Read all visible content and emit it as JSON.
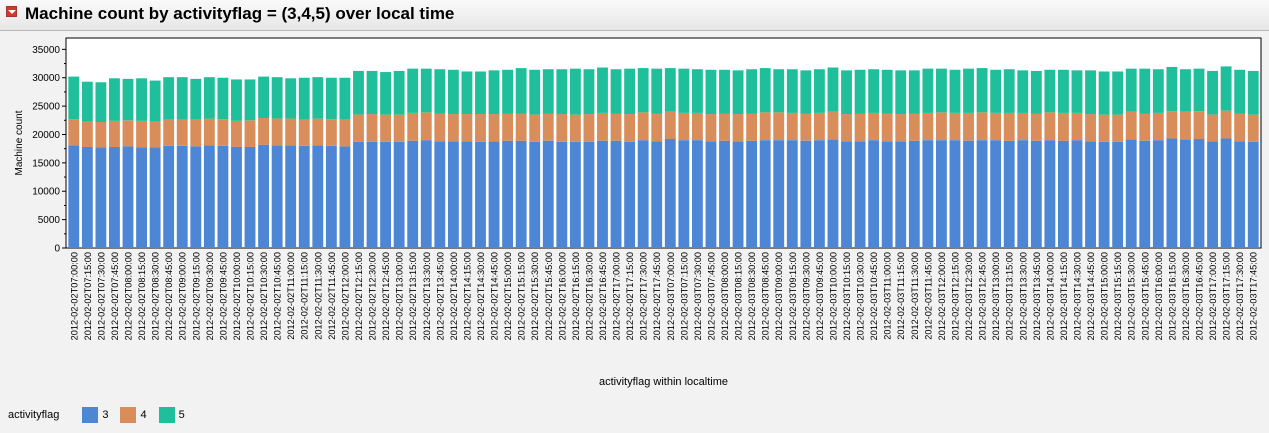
{
  "title": "Machine count by activityflag = (3,4,5) over local time",
  "colors": {
    "3": "#4e86d6",
    "4": "#d98d5a",
    "5": "#1fbf9c"
  },
  "legend": {
    "title": "activityflag",
    "items": [
      {
        "label": "3",
        "color": "#4e86d6"
      },
      {
        "label": "4",
        "color": "#d98d5a"
      },
      {
        "label": "5",
        "color": "#1fbf9c"
      }
    ]
  },
  "chart_data": {
    "type": "bar",
    "stacked": true,
    "xlabel": "activityflag within localtime",
    "ylabel": "Machine count",
    "ylim": [
      0,
      37000
    ],
    "yticks": [
      0,
      5000,
      10000,
      15000,
      20000,
      25000,
      30000,
      35000
    ],
    "ytick_labels": [
      "0",
      "5000",
      "10000",
      "15000",
      "20000",
      "25000",
      "30000",
      "35000"
    ],
    "grid": false,
    "legend_position": "bottom-left",
    "categories": [
      "2012-02-02T07:00:00",
      "2012-02-02T07:15:00",
      "2012-02-02T07:30:00",
      "2012-02-02T07:45:00",
      "2012-02-02T08:00:00",
      "2012-02-02T08:15:00",
      "2012-02-02T08:30:00",
      "2012-02-02T08:45:00",
      "2012-02-02T09:00:00",
      "2012-02-02T09:15:00",
      "2012-02-02T09:30:00",
      "2012-02-02T09:45:00",
      "2012-02-02T10:00:00",
      "2012-02-02T10:15:00",
      "2012-02-02T10:30:00",
      "2012-02-02T10:45:00",
      "2012-02-02T11:00:00",
      "2012-02-02T11:15:00",
      "2012-02-02T11:30:00",
      "2012-02-02T11:45:00",
      "2012-02-02T12:00:00",
      "2012-02-02T12:15:00",
      "2012-02-02T12:30:00",
      "2012-02-02T12:45:00",
      "2012-02-02T13:00:00",
      "2012-02-02T13:15:00",
      "2012-02-02T13:30:00",
      "2012-02-02T13:45:00",
      "2012-02-02T14:00:00",
      "2012-02-02T14:15:00",
      "2012-02-02T14:30:00",
      "2012-02-02T14:45:00",
      "2012-02-02T15:00:00",
      "2012-02-02T15:15:00",
      "2012-02-02T15:30:00",
      "2012-02-02T15:45:00",
      "2012-02-02T16:00:00",
      "2012-02-02T16:15:00",
      "2012-02-02T16:30:00",
      "2012-02-02T16:45:00",
      "2012-02-02T17:00:00",
      "2012-02-02T17:15:00",
      "2012-02-02T17:30:00",
      "2012-02-02T17:45:00",
      "2012-02-03T07:00:00",
      "2012-02-03T07:15:00",
      "2012-02-03T07:30:00",
      "2012-02-03T07:45:00",
      "2012-02-03T08:00:00",
      "2012-02-03T08:15:00",
      "2012-02-03T08:30:00",
      "2012-02-03T08:45:00",
      "2012-02-03T09:00:00",
      "2012-02-03T09:15:00",
      "2012-02-03T09:30:00",
      "2012-02-03T09:45:00",
      "2012-02-03T10:00:00",
      "2012-02-03T10:15:00",
      "2012-02-03T10:30:00",
      "2012-02-03T10:45:00",
      "2012-02-03T11:00:00",
      "2012-02-03T11:15:00",
      "2012-02-03T11:30:00",
      "2012-02-03T11:45:00",
      "2012-02-03T12:00:00",
      "2012-02-03T12:15:00",
      "2012-02-03T12:30:00",
      "2012-02-03T12:45:00",
      "2012-02-03T13:00:00",
      "2012-02-03T13:15:00",
      "2012-02-03T13:30:00",
      "2012-02-03T13:45:00",
      "2012-02-03T14:00:00",
      "2012-02-03T14:15:00",
      "2012-02-03T14:30:00",
      "2012-02-03T14:45:00",
      "2012-02-03T15:00:00",
      "2012-02-03T15:15:00",
      "2012-02-03T15:30:00",
      "2012-02-03T15:45:00",
      "2012-02-03T16:00:00",
      "2012-02-03T16:15:00",
      "2012-02-03T16:30:00",
      "2012-02-03T16:45:00",
      "2012-02-03T17:00:00",
      "2012-02-03T17:15:00",
      "2012-02-03T17:30:00",
      "2012-02-03T17:45:00"
    ],
    "series": [
      {
        "name": "3",
        "values": [
          18100,
          17800,
          17700,
          17800,
          17900,
          17700,
          17700,
          18000,
          18000,
          17900,
          18100,
          18000,
          17800,
          17800,
          18200,
          18100,
          18100,
          18000,
          18100,
          18000,
          17900,
          18700,
          18700,
          18700,
          18700,
          18900,
          19000,
          18800,
          18800,
          18800,
          18700,
          18800,
          18900,
          18900,
          18700,
          18900,
          18700,
          18700,
          18700,
          18900,
          18900,
          18700,
          19000,
          18800,
          19200,
          19000,
          19000,
          18800,
          18900,
          18800,
          18900,
          19000,
          19000,
          19000,
          18900,
          19000,
          19100,
          18800,
          18800,
          19000,
          18800,
          18800,
          18900,
          19000,
          19000,
          19000,
          18900,
          19000,
          19000,
          18900,
          19000,
          18900,
          19000,
          18900,
          19000,
          18800,
          18700,
          18700,
          19100,
          18900,
          19000,
          19300,
          19100,
          19200,
          18800,
          19300,
          18800,
          18700
        ]
      },
      {
        "name": "4",
        "values": [
          4600,
          4500,
          4500,
          4600,
          4600,
          4700,
          4600,
          4600,
          4600,
          4700,
          4700,
          4700,
          4600,
          4700,
          4700,
          4700,
          4700,
          4600,
          4700,
          4700,
          4700,
          4800,
          4900,
          4800,
          4800,
          4900,
          4900,
          4900,
          4800,
          4800,
          4900,
          4800,
          4800,
          4800,
          4800,
          4800,
          4900,
          4800,
          4900,
          4900,
          4800,
          4900,
          4900,
          4900,
          4800,
          4800,
          4800,
          4800,
          4800,
          4800,
          4800,
          4900,
          4900,
          4800,
          4800,
          4800,
          4900,
          4800,
          4900,
          4800,
          4900,
          4800,
          4800,
          4800,
          4900,
          4800,
          4900,
          4900,
          4800,
          4900,
          4800,
          4800,
          4900,
          4900,
          4800,
          4800,
          4800,
          4800,
          4900,
          4800,
          4800,
          4800,
          4900,
          4900,
          4700,
          4900,
          4900,
          4800
        ]
      },
      {
        "name": "5",
        "values": [
          7500,
          7000,
          7000,
          7500,
          7300,
          7500,
          7200,
          7500,
          7500,
          7200,
          7300,
          7300,
          7300,
          7200,
          7300,
          7300,
          7100,
          7400,
          7300,
          7300,
          7400,
          7700,
          7600,
          7500,
          7700,
          7800,
          7700,
          7800,
          7800,
          7500,
          7500,
          7700,
          7700,
          8000,
          7900,
          7800,
          7900,
          8100,
          7900,
          8000,
          7800,
          8000,
          7800,
          7900,
          7700,
          7800,
          7700,
          7800,
          7700,
          7700,
          7800,
          7800,
          7600,
          7700,
          7600,
          7700,
          7800,
          7700,
          7700,
          7700,
          7700,
          7700,
          7600,
          7800,
          7700,
          7600,
          7800,
          7800,
          7600,
          7700,
          7500,
          7500,
          7500,
          7600,
          7500,
          7700,
          7600,
          7600,
          7600,
          7900,
          7700,
          7800,
          7500,
          7500,
          7700,
          7800,
          7700,
          7700
        ]
      }
    ]
  }
}
